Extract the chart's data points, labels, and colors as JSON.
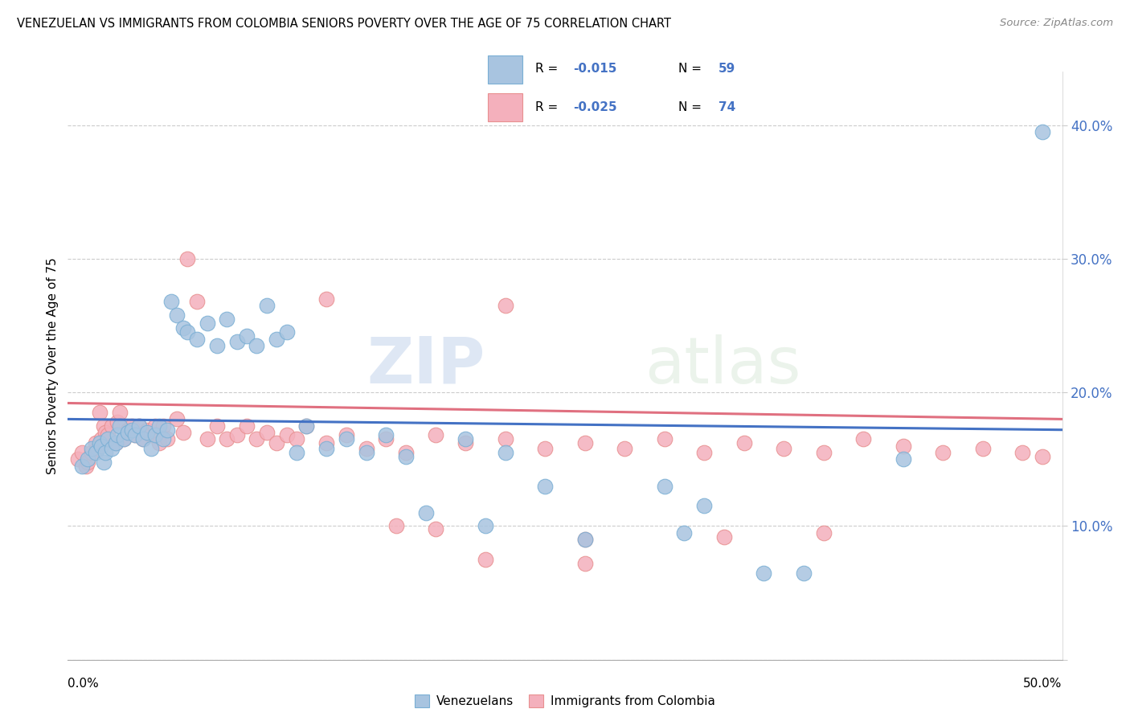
{
  "title": "VENEZUELAN VS IMMIGRANTS FROM COLOMBIA SENIORS POVERTY OVER THE AGE OF 75 CORRELATION CHART",
  "source": "Source: ZipAtlas.com",
  "ylabel": "Seniors Poverty Over the Age of 75",
  "yticks": [
    0.0,
    0.1,
    0.2,
    0.3,
    0.4
  ],
  "ytick_labels": [
    "",
    "10.0%",
    "20.0%",
    "30.0%",
    "40.0%"
  ],
  "xlim": [
    0.0,
    0.5
  ],
  "ylim": [
    0.0,
    0.44
  ],
  "watermark_zip": "ZIP",
  "watermark_atlas": "atlas",
  "line_color_venezuelan": "#4472c4",
  "line_color_colombian": "#e07080",
  "dot_color_venezuelan": "#a8c4e0",
  "dot_color_colombian": "#f4b0bc",
  "dot_edge_venezuelan": "#7aafd4",
  "dot_edge_colombian": "#e89090",
  "venezuelan_x": [
    0.007,
    0.01,
    0.012,
    0.014,
    0.016,
    0.017,
    0.018,
    0.019,
    0.02,
    0.022,
    0.024,
    0.025,
    0.026,
    0.028,
    0.03,
    0.032,
    0.034,
    0.036,
    0.038,
    0.04,
    0.042,
    0.044,
    0.046,
    0.048,
    0.05,
    0.052,
    0.055,
    0.058,
    0.06,
    0.065,
    0.07,
    0.075,
    0.08,
    0.085,
    0.09,
    0.095,
    0.1,
    0.105,
    0.11,
    0.115,
    0.12,
    0.13,
    0.14,
    0.15,
    0.16,
    0.17,
    0.18,
    0.2,
    0.21,
    0.22,
    0.24,
    0.26,
    0.3,
    0.31,
    0.32,
    0.35,
    0.37,
    0.42,
    0.49
  ],
  "venezuelan_y": [
    0.145,
    0.15,
    0.158,
    0.155,
    0.162,
    0.16,
    0.148,
    0.155,
    0.165,
    0.158,
    0.162,
    0.168,
    0.175,
    0.165,
    0.17,
    0.172,
    0.168,
    0.175,
    0.165,
    0.17,
    0.158,
    0.168,
    0.175,
    0.165,
    0.172,
    0.268,
    0.258,
    0.248,
    0.245,
    0.24,
    0.252,
    0.235,
    0.255,
    0.238,
    0.242,
    0.235,
    0.265,
    0.24,
    0.245,
    0.155,
    0.175,
    0.158,
    0.165,
    0.155,
    0.168,
    0.152,
    0.11,
    0.165,
    0.1,
    0.155,
    0.13,
    0.09,
    0.13,
    0.095,
    0.115,
    0.065,
    0.065,
    0.15,
    0.395
  ],
  "colombian_x": [
    0.005,
    0.007,
    0.009,
    0.01,
    0.012,
    0.014,
    0.015,
    0.016,
    0.017,
    0.018,
    0.019,
    0.02,
    0.022,
    0.024,
    0.025,
    0.026,
    0.028,
    0.03,
    0.032,
    0.034,
    0.036,
    0.038,
    0.04,
    0.042,
    0.044,
    0.046,
    0.048,
    0.05,
    0.055,
    0.058,
    0.06,
    0.065,
    0.07,
    0.075,
    0.08,
    0.085,
    0.09,
    0.095,
    0.1,
    0.105,
    0.11,
    0.115,
    0.12,
    0.13,
    0.14,
    0.15,
    0.16,
    0.17,
    0.185,
    0.2,
    0.22,
    0.24,
    0.26,
    0.28,
    0.3,
    0.32,
    0.34,
    0.36,
    0.38,
    0.4,
    0.42,
    0.44,
    0.46,
    0.48,
    0.49,
    0.13,
    0.22,
    0.26,
    0.33,
    0.38,
    0.165,
    0.185,
    0.21,
    0.26
  ],
  "colombian_y": [
    0.15,
    0.155,
    0.145,
    0.148,
    0.155,
    0.162,
    0.158,
    0.185,
    0.165,
    0.175,
    0.17,
    0.168,
    0.175,
    0.162,
    0.178,
    0.185,
    0.165,
    0.172,
    0.175,
    0.168,
    0.175,
    0.165,
    0.172,
    0.168,
    0.175,
    0.162,
    0.175,
    0.165,
    0.18,
    0.17,
    0.3,
    0.268,
    0.165,
    0.175,
    0.165,
    0.168,
    0.175,
    0.165,
    0.17,
    0.162,
    0.168,
    0.165,
    0.175,
    0.162,
    0.168,
    0.158,
    0.165,
    0.155,
    0.168,
    0.162,
    0.165,
    0.158,
    0.162,
    0.158,
    0.165,
    0.155,
    0.162,
    0.158,
    0.155,
    0.165,
    0.16,
    0.155,
    0.158,
    0.155,
    0.152,
    0.27,
    0.265,
    0.09,
    0.092,
    0.095,
    0.1,
    0.098,
    0.075,
    0.072
  ],
  "ven_line_x": [
    0.0,
    0.5
  ],
  "ven_line_y": [
    0.18,
    0.172
  ],
  "col_line_x": [
    0.0,
    0.5
  ],
  "col_line_y": [
    0.192,
    0.18
  ]
}
